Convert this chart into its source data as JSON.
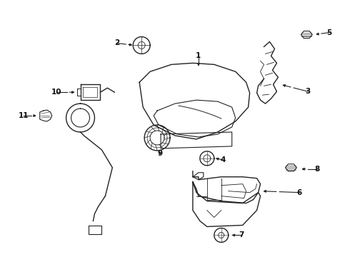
{
  "bg_color": "#ffffff",
  "line_color": "#222222",
  "text_color": "#111111",
  "figsize": [
    4.9,
    3.6
  ],
  "dpi": 100
}
